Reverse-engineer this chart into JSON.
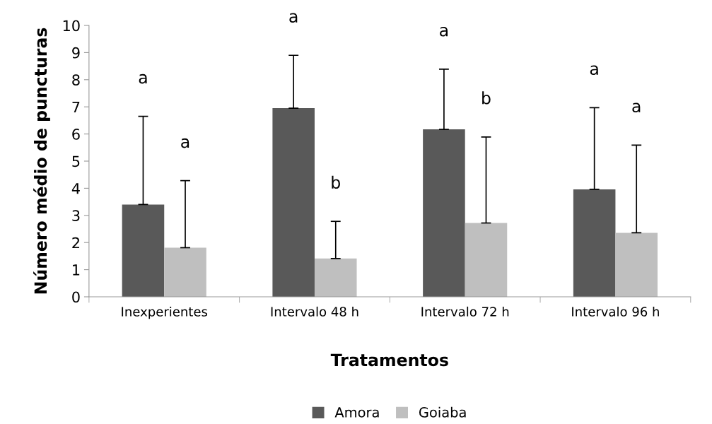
{
  "chart_data": {
    "type": "bar",
    "xlabel": "Tratamentos",
    "ylabel": "Número médio de puncturas",
    "categories": [
      "Inexperientes",
      "Intervalo 48 h",
      "Intervalo 72 h",
      "Intervalo 96 h"
    ],
    "series": [
      {
        "name": "Amora",
        "color": "#595959",
        "values": [
          3.4,
          6.95,
          6.17,
          3.96
        ],
        "errors": [
          [
            3.4,
            6.65
          ],
          [
            6.95,
            8.9
          ],
          [
            6.17,
            8.39
          ],
          [
            3.96,
            6.97
          ]
        ]
      },
      {
        "name": "Goiaba",
        "color": "#bfbfbf",
        "values": [
          1.81,
          1.41,
          2.72,
          2.36
        ],
        "errors": [
          [
            1.81,
            4.28
          ],
          [
            1.41,
            2.78
          ],
          [
            2.72,
            5.89
          ],
          [
            2.36,
            5.59
          ]
        ]
      }
    ],
    "annotations": [
      "a",
      "a",
      "a",
      "b",
      "a",
      "b",
      "a",
      "a"
    ],
    "ylim": [
      0,
      10
    ],
    "yticks": [
      0,
      1,
      2,
      3,
      4,
      5,
      6,
      7,
      8,
      9,
      10
    ],
    "grid": false,
    "legend": "bottom"
  }
}
